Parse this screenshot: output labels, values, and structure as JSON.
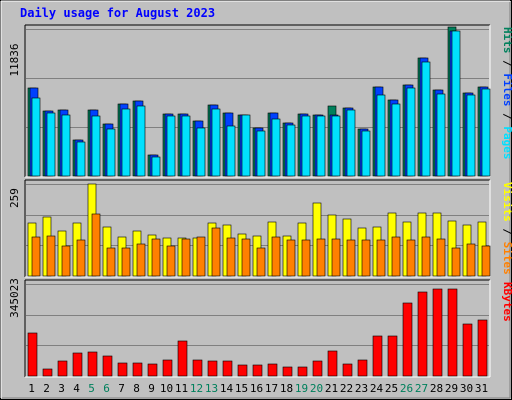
{
  "chart_data": {
    "type": "bar",
    "title": "Daily usage for August 2023",
    "days": [
      "1",
      "2",
      "3",
      "4",
      "5",
      "6",
      "7",
      "8",
      "9",
      "10",
      "11",
      "12",
      "13",
      "14",
      "15",
      "16",
      "17",
      "18",
      "19",
      "20",
      "21",
      "22",
      "23",
      "24",
      "25",
      "26",
      "27",
      "28",
      "29",
      "30",
      "31"
    ],
    "weekend_days": [
      "5",
      "6",
      "12",
      "13",
      "19",
      "20",
      "26",
      "27"
    ],
    "colors": {
      "hits": "#00805c",
      "files": "#0040ff",
      "pages": "#00e0ff",
      "visits": "#ffff00",
      "sites": "#ff8000",
      "kbytes": "#ff0000",
      "weekday_label": "#000000",
      "weekend_label": "#00805c"
    },
    "panels": [
      {
        "name": "hits-files-pages",
        "max_label": "11836",
        "ylim": [
          0,
          11836
        ],
        "series": [
          {
            "name": "Hits",
            "values": [
              7100,
              5200,
              5300,
              2900,
              5300,
              4200,
              5800,
              6000,
              1700,
              5000,
              5000,
              4400,
              5700,
              5100,
              4900,
              3900,
              5100,
              4300,
              5000,
              4900,
              5600,
              5500,
              3800,
              7200,
              6100,
              7300,
              9500,
              6900,
              12000,
              6700,
              7200
            ]
          },
          {
            "name": "Files",
            "values": [
              7100,
              5200,
              5300,
              2900,
              5300,
              4200,
              5800,
              6000,
              1700,
              5000,
              5000,
              4400,
              5700,
              5100,
              4900,
              3900,
              5100,
              4300,
              5000,
              4900,
              4900,
              5500,
              3800,
              7200,
              6100,
              7300,
              9500,
              6900,
              11700,
              6700,
              7200
            ]
          },
          {
            "name": "Pages",
            "values": [
              6300,
              5100,
              4900,
              2700,
              4800,
              3800,
              5400,
              5600,
              1500,
              4800,
              4800,
              3900,
              5400,
              4000,
              4900,
              3600,
              4600,
              4100,
              4800,
              4800,
              4800,
              5300,
              3600,
              6500,
              5800,
              7100,
              9200,
              6600,
              11700,
              6500,
              7000
            ]
          }
        ],
        "side_label": [
          "Pages",
          " / ",
          "Files",
          " / ",
          "Hits"
        ]
      },
      {
        "name": "visits-sites",
        "max_label": "259",
        "ylim": [
          0,
          259
        ],
        "series": [
          {
            "name": "Visits",
            "values": [
              150,
              165,
              128,
              150,
              259,
              137,
              110,
              127,
              115,
              107,
              107,
              107,
              150,
              143,
              118,
              112,
              152,
              114,
              150,
              205,
              171,
              160,
              134,
              138,
              177,
              153,
              178,
              177,
              155,
              144,
              152
            ]
          },
          {
            "name": "Sites",
            "values": [
              110,
              112,
              84,
              102,
              175,
              80,
              80,
              90,
              105,
              84,
              105,
              110,
              134,
              108,
              105,
              80,
              110,
              100,
              100,
              105,
              105,
              100,
              102,
              100,
              110,
              100,
              110,
              105,
              80,
              90,
              84
            ]
          }
        ],
        "side_label": [
          "Sites",
          " / ",
          "Visits"
        ]
      },
      {
        "name": "kbytes",
        "max_label": "345023",
        "ylim": [
          0,
          345023
        ],
        "series": [
          {
            "name": "KBytes",
            "values": [
              160000,
              25000,
              55000,
              85000,
              90000,
              75000,
              50000,
              50000,
              45000,
              60000,
              130000,
              60000,
              55000,
              55000,
              40000,
              40000,
              45000,
              35000,
              35000,
              55000,
              95000,
              45000,
              60000,
              150000,
              150000,
              275000,
              315000,
              325000,
              325000,
              195000,
              210000
            ]
          }
        ],
        "side_label": [
          "KBytes"
        ]
      }
    ]
  }
}
